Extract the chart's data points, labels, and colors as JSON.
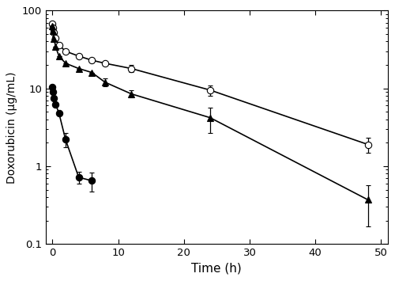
{
  "title": "",
  "xlabel": "Time (h)",
  "ylabel": "Doxorubicin (μg/mL)",
  "xlim": [
    -1,
    51
  ],
  "ylim_log": [
    0.1,
    100
  ],
  "xticks": [
    0,
    10,
    20,
    30,
    40,
    50
  ],
  "free_dox": {
    "marker": "o",
    "markerfacecolor": "black",
    "x": [
      0,
      0.083,
      0.25,
      0.5,
      1.0,
      2.0,
      4.0,
      6.0
    ],
    "y": [
      10.5,
      9.0,
      7.5,
      6.2,
      4.8,
      2.2,
      0.72,
      0.65
    ],
    "yerr": [
      0,
      0,
      0,
      0,
      0,
      0.45,
      0.12,
      0.18
    ]
  },
  "l_dox": {
    "marker": "o",
    "markerfacecolor": "white",
    "x": [
      0,
      0.083,
      0.25,
      0.5,
      1.0,
      2.0,
      4.0,
      6.0,
      8.0,
      12.0,
      24.0,
      48.0
    ],
    "y": [
      68,
      60,
      52,
      44,
      36,
      30,
      26,
      23,
      21,
      18,
      9.5,
      1.9
    ],
    "yerr": [
      0,
      0,
      0,
      0,
      0,
      0,
      0,
      0,
      0,
      1.8,
      1.4,
      0.4
    ]
  },
  "lac_l_dox": {
    "marker": "^",
    "markerfacecolor": "black",
    "x": [
      0,
      0.083,
      0.25,
      0.5,
      1.0,
      2.0,
      4.0,
      6.0,
      8.0,
      12.0,
      24.0,
      48.0
    ],
    "y": [
      63,
      55,
      43,
      34,
      26,
      21,
      18,
      16,
      12,
      8.5,
      4.2,
      0.37
    ],
    "yerr": [
      0,
      0,
      0,
      0,
      0,
      0,
      0,
      0,
      1.3,
      0.9,
      1.5,
      0.2
    ]
  },
  "line_color": "black",
  "bg_color": "white",
  "markersize": 6,
  "linewidth": 1.2,
  "capsize": 2.5,
  "elinewidth": 0.9
}
